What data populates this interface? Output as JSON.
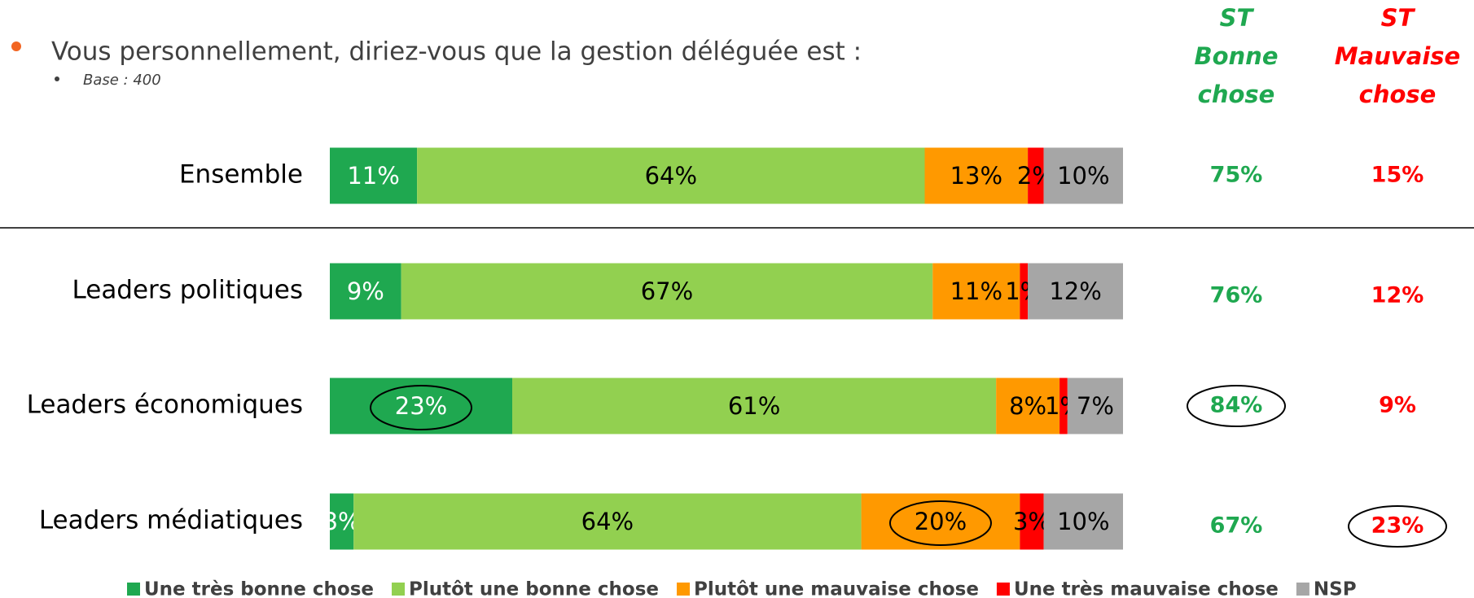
{
  "chart_data": {
    "type": "bar",
    "orientation": "horizontal",
    "stacked": true,
    "title": "Vous personnellement, diriez-vous que la gestion déléguée est :",
    "subtitle": "Base : 400",
    "categories": [
      "Ensemble",
      "Leaders politiques",
      "Leaders économiques",
      "Leaders médiatiques"
    ],
    "xlim": [
      0,
      100
    ],
    "series": [
      {
        "name": "Une très bonne chose",
        "color": "#1fa850",
        "values": [
          11,
          9,
          23,
          3
        ],
        "value_labels": [
          "11%",
          "9%",
          "23%",
          "3%"
        ]
      },
      {
        "name": "Plutôt une bonne chose",
        "color": "#92d050",
        "values": [
          64,
          67,
          61,
          64
        ],
        "value_labels": [
          "64%",
          "67%",
          "61%",
          "64%"
        ]
      },
      {
        "name": "Plutôt une mauvaise chose",
        "color": "#ff9900",
        "values": [
          13,
          11,
          8,
          20
        ],
        "value_labels": [
          "13%",
          "11%",
          "8%",
          "20%"
        ]
      },
      {
        "name": "Une très mauvaise chose",
        "color": "#ff0000",
        "values": [
          2,
          1,
          1,
          3
        ],
        "value_labels": [
          "2%",
          "1%",
          "1%",
          "3%"
        ]
      },
      {
        "name": "NSP",
        "color": "#a6a6a6",
        "values": [
          10,
          12,
          7,
          10
        ],
        "value_labels": [
          "10%",
          "12%",
          "7%",
          "10%"
        ]
      }
    ],
    "summary": [
      {
        "name": [
          "ST",
          "Bonne",
          "chose"
        ],
        "color": "#1fa850",
        "values": [
          75,
          76,
          84,
          67
        ],
        "value_labels": [
          "75%",
          "76%",
          "84%",
          "67%"
        ]
      },
      {
        "name": [
          "ST",
          "Mauvaise",
          "chose"
        ],
        "color": "#ff0000",
        "values": [
          15,
          12,
          9,
          23
        ],
        "value_labels": [
          "15%",
          "12%",
          "9%",
          "23%"
        ]
      }
    ]
  }
}
